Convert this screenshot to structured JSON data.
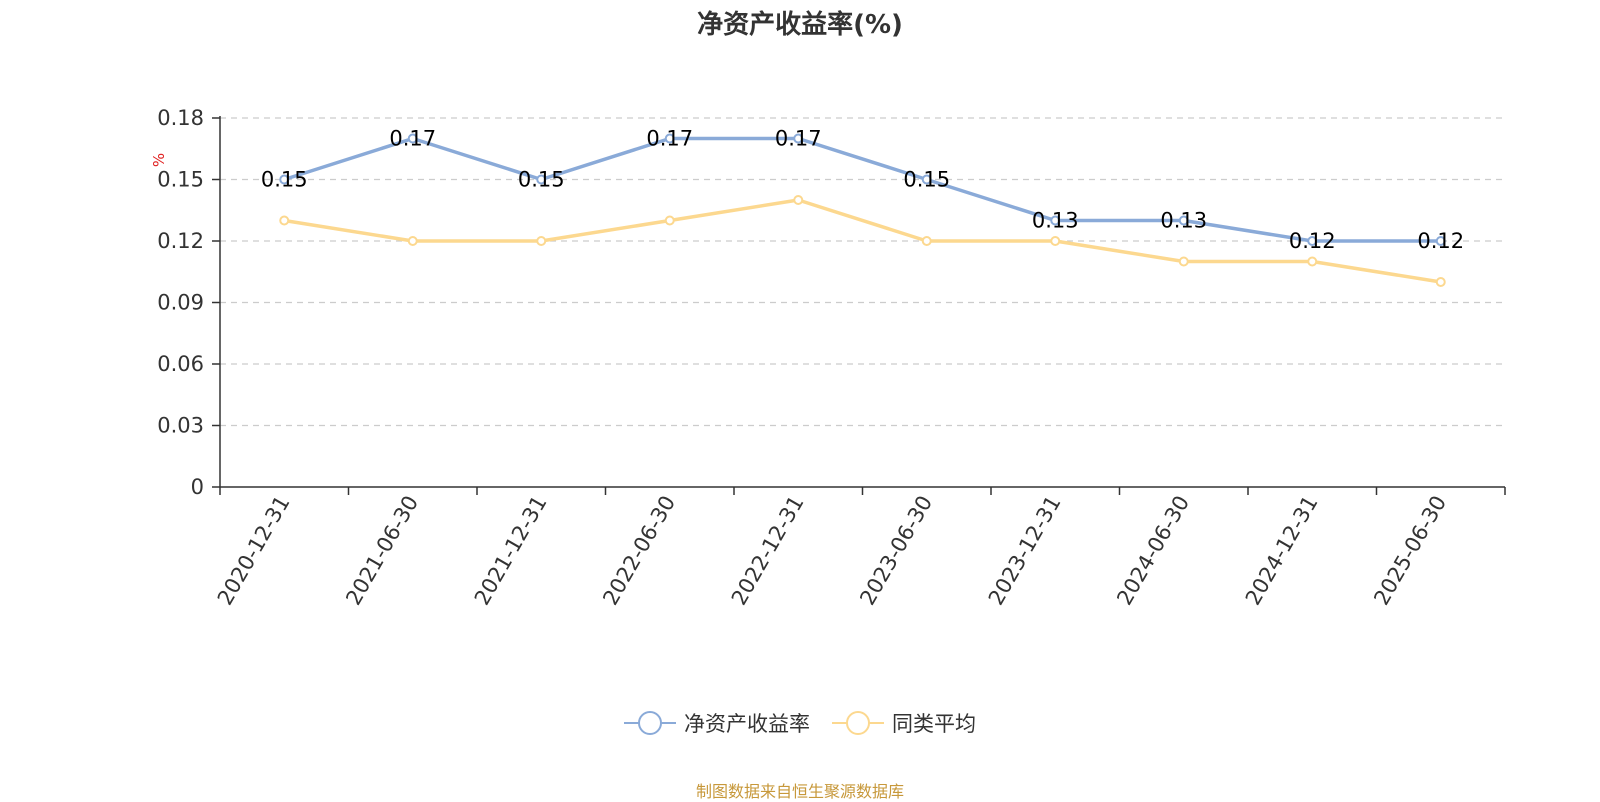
{
  "chart_data": {
    "type": "line",
    "title": "净资产收益率(%)",
    "ylabel": "%",
    "xlabel": "",
    "categories": [
      "2020-12-31",
      "2021-06-30",
      "2021-12-31",
      "2022-06-30",
      "2022-12-31",
      "2023-06-30",
      "2023-12-31",
      "2024-06-30",
      "2024-12-31",
      "2025-06-30"
    ],
    "ylim": [
      0,
      0.18
    ],
    "yticks": [
      "0",
      "0.03",
      "0.06",
      "0.09",
      "0.12",
      "0.15",
      "0.18"
    ],
    "grid": "horizontal-dashed",
    "legend_position": "bottom",
    "series": [
      {
        "name": "净资产收益率",
        "color": "#8aaad8",
        "values": [
          0.15,
          0.17,
          0.15,
          0.17,
          0.17,
          0.15,
          0.13,
          0.13,
          0.12,
          0.12
        ],
        "data_labels": [
          "0.15",
          "0.17",
          "0.15",
          "0.17",
          "0.17",
          "0.15",
          "0.13",
          "0.13",
          "0.12",
          "0.12"
        ]
      },
      {
        "name": "同类平均",
        "color": "#fcd88f",
        "values": [
          0.13,
          0.12,
          0.12,
          0.13,
          0.14,
          0.12,
          0.12,
          0.11,
          0.11,
          0.1
        ]
      }
    ]
  },
  "source_note": "制图数据来自恒生聚源数据库"
}
